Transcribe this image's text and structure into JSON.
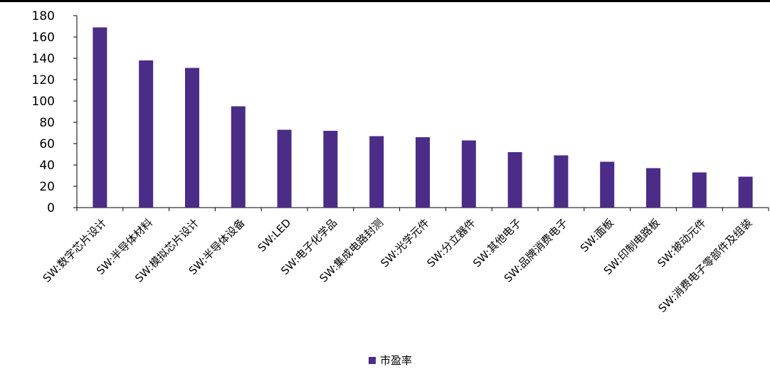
{
  "chart_data": {
    "type": "bar",
    "categories": [
      "SW:数字芯片设计",
      "SW:半导体材料",
      "SW:模拟芯片设计",
      "SW:半导体设备",
      "SW:LED",
      "SW:电子化学品",
      "SW:集成电路封测",
      "SW:光学元件",
      "SW:分立器件",
      "SW:其他电子",
      "SW:品牌消费电子",
      "SW:面板",
      "SW:印制电路板",
      "SW:被动元件",
      "SW:消费电子零部件及组装"
    ],
    "series": [
      {
        "name": "市盈率",
        "color": "#4B2C87",
        "values": [
          169,
          138,
          131,
          95,
          73,
          72,
          67,
          66,
          63,
          52,
          49,
          43,
          37,
          33,
          29
        ]
      }
    ],
    "yticks": [
      0,
      20,
      40,
      60,
      80,
      100,
      120,
      140,
      160,
      180
    ],
    "ylim": [
      0,
      180
    ],
    "grid": false,
    "legend_position": "bottom-center",
    "title": "",
    "xlabel": "",
    "ylabel": ""
  }
}
